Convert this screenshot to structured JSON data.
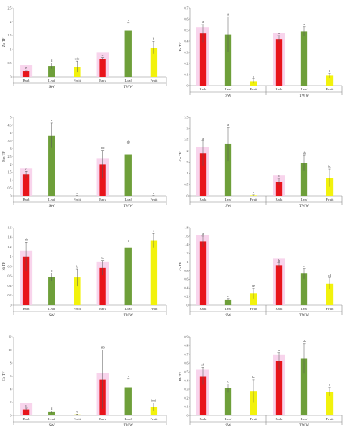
{
  "chart_data": [
    {
      "type": "bar",
      "ylabel": "Zn TF",
      "ylim": [
        0,
        2.5
      ],
      "ticks": [
        0,
        0.5,
        1,
        1.5,
        2,
        2.5
      ],
      "categories": [
        "Bark",
        "Leaf",
        "Fruit",
        "Bark",
        "Leaf",
        "Fruit"
      ],
      "groups": [
        "SW",
        "TWW"
      ],
      "values": [
        0.2,
        0.4,
        0.37,
        0.65,
        1.68,
        1.06
      ],
      "errors": [
        0.03,
        0.1,
        0.2,
        0.05,
        0.28,
        0.22
      ],
      "letters": [
        "e",
        "d",
        "cde",
        "c",
        "a",
        "b"
      ]
    },
    {
      "type": "bar",
      "ylabel": "Fe TF",
      "ylim": [
        0,
        0.7
      ],
      "ticks": [
        0,
        0.1,
        0.2,
        0.3,
        0.4,
        0.5,
        0.6,
        0.7
      ],
      "categories": [
        "Bark",
        "Leaf",
        "Fruit",
        "Bark",
        "Leaf",
        "Fruit"
      ],
      "groups": [
        "SW",
        "TWW"
      ],
      "values": [
        0.47,
        0.46,
        0.04,
        0.42,
        0.49,
        0.09
      ],
      "errors": [
        0.08,
        0.16,
        0.02,
        0.03,
        0.04,
        0.02
      ],
      "letters": [
        "a",
        "a",
        "c",
        "a",
        "a",
        "b"
      ]
    },
    {
      "type": "bar",
      "ylabel": "Mn TF",
      "ylim": [
        0,
        5
      ],
      "ticks": [
        0,
        0.5,
        1,
        1.5,
        2,
        2.5,
        3,
        3.5,
        4,
        4.5,
        5
      ],
      "categories": [
        "Bark",
        "Leaf",
        "Fruit",
        "Bark",
        "Leaf",
        "Fruit"
      ],
      "groups": [
        "SW",
        "TWW"
      ],
      "values": [
        1.35,
        3.85,
        0.0,
        2.0,
        2.65,
        0.0
      ],
      "errors": [
        0.2,
        0.8,
        0.02,
        0.9,
        0.65,
        0.02
      ],
      "letters": [
        "c",
        "a",
        "e",
        "bc",
        "ab",
        "d"
      ]
    },
    {
      "type": "bar",
      "ylabel": "Cu TF",
      "ylim": [
        0,
        3.5
      ],
      "ticks": [
        0,
        0.5,
        1,
        1.5,
        2,
        2.5,
        3,
        3.5
      ],
      "categories": [
        "Bark",
        "Leaf",
        "Fruit",
        "Bark",
        "Leaf",
        "Fruit"
      ],
      "groups": [
        "SW",
        "TWW"
      ],
      "values": [
        1.9,
        2.3,
        0.02,
        0.63,
        1.45,
        0.8
      ],
      "errors": [
        0.55,
        0.75,
        0.02,
        0.15,
        0.35,
        0.4
      ],
      "letters": [
        "a",
        "a",
        "d",
        "c",
        "ab",
        "bc"
      ]
    },
    {
      "type": "bar",
      "ylabel": "Ni TF",
      "ylim": [
        0,
        1.6
      ],
      "ticks": [
        0,
        0.2,
        0.4,
        0.6,
        0.8,
        1,
        1.2,
        1.4,
        1.6
      ],
      "categories": [
        "Bark",
        "Leaf",
        "Fruit",
        "Bark",
        "Leaf",
        "Fruit"
      ],
      "groups": [
        "SW",
        "TWW"
      ],
      "values": [
        1.0,
        0.58,
        0.57,
        0.77,
        1.18,
        1.33
      ],
      "errors": [
        0.3,
        0.08,
        0.18,
        0.15,
        0.1,
        0.15
      ],
      "letters": [
        "ab",
        "b",
        "b",
        "b",
        "a",
        "a"
      ]
    },
    {
      "type": "bar",
      "ylabel": "Cr TF",
      "ylim": [
        0,
        1.8
      ],
      "ticks": [
        0,
        0.2,
        0.4,
        0.6,
        0.8,
        1,
        1.2,
        1.4,
        1.6,
        1.8
      ],
      "categories": [
        "Bark",
        "Leaf",
        "Fruit",
        "Bark",
        "Leaf",
        "Fruit"
      ],
      "groups": [
        "SW",
        "TWW"
      ],
      "values": [
        1.48,
        0.13,
        0.27,
        0.93,
        0.73,
        0.5
      ],
      "errors": [
        0.12,
        0.02,
        0.12,
        0.05,
        0.12,
        0.13
      ],
      "letters": [
        "a",
        "e",
        "de",
        "b",
        "c",
        "cd"
      ]
    },
    {
      "type": "bar",
      "ylabel": "Cd TF",
      "ylim": [
        0,
        12
      ],
      "ticks": [
        0,
        2,
        4,
        6,
        8,
        10,
        12
      ],
      "categories": [
        "Bark",
        "Leaf",
        "Fruit",
        "Bark",
        "Leaf",
        "Fruit"
      ],
      "groups": [
        "SW",
        "TWW"
      ],
      "values": [
        0.9,
        0.5,
        0.15,
        5.5,
        4.3,
        1.3
      ],
      "errors": [
        0.2,
        0.15,
        0.05,
        4.5,
        1.3,
        0.6
      ],
      "letters": [
        "c",
        "d",
        "e",
        "ab",
        "a",
        "bcd"
      ]
    },
    {
      "type": "bar",
      "ylabel": "Pb TF",
      "ylim": [
        0,
        0.9
      ],
      "ticks": [
        0,
        0.1,
        0.2,
        0.3,
        0.4,
        0.5,
        0.6,
        0.7,
        0.8,
        0.9
      ],
      "categories": [
        "Bark",
        "Leaf",
        "Fruit",
        "Bark",
        "Leaf",
        "Fruit"
      ],
      "groups": [
        "SW",
        "TWW"
      ],
      "values": [
        0.45,
        0.31,
        0.28,
        0.62,
        0.65,
        0.27
      ],
      "errors": [
        0.1,
        0.05,
        0.13,
        0.1,
        0.17,
        0.05
      ],
      "letters": [
        "ab",
        "c",
        "bc",
        "a",
        "ab",
        "c"
      ]
    }
  ],
  "colors": {
    "bark": "#e8141b",
    "leaf": "#6e9f3a",
    "fruit": "#f2f20c",
    "highlight": "#f7cce9",
    "axis": "#888888"
  }
}
